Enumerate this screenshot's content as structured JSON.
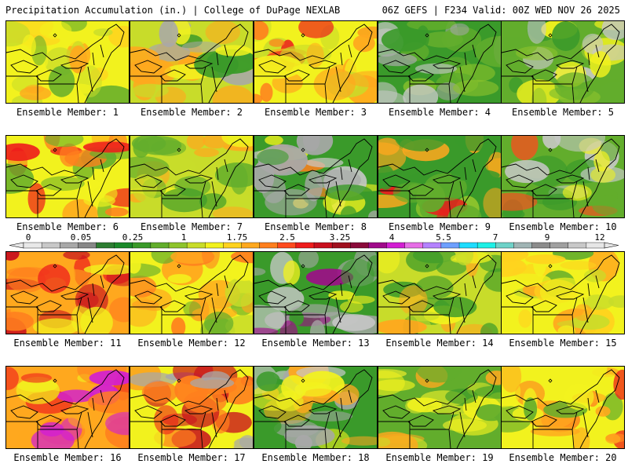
{
  "header": {
    "left": "Precipitation Accumulation (in.) | College of DuPage NEXLAB",
    "right": "06Z GEFS | F234 Valid: 00Z WED NOV 26 2025"
  },
  "panels": [
    {
      "label": "Ensemble Member: 1"
    },
    {
      "label": "Ensemble Member: 2"
    },
    {
      "label": "Ensemble Member: 3"
    },
    {
      "label": "Ensemble Member: 4"
    },
    {
      "label": "Ensemble Member: 5"
    },
    {
      "label": "Ensemble Member: 6"
    },
    {
      "label": "Ensemble Member: 7"
    },
    {
      "label": "Ensemble Member: 8"
    },
    {
      "label": "Ensemble Member: 9"
    },
    {
      "label": "Ensemble Member: 10"
    },
    {
      "label": "Ensemble Member: 11"
    },
    {
      "label": "Ensemble Member: 12"
    },
    {
      "label": "Ensemble Member: 13"
    },
    {
      "label": "Ensemble Member: 14"
    },
    {
      "label": "Ensemble Member: 15"
    },
    {
      "label": "Ensemble Member: 16"
    },
    {
      "label": "Ensemble Member: 17"
    },
    {
      "label": "Ensemble Member: 18"
    },
    {
      "label": "Ensemble Member: 19"
    },
    {
      "label": "Ensemble Member: 20"
    }
  ],
  "legend": {
    "tick_labels": [
      "0",
      "0.05",
      "0.25",
      "1",
      "1.75",
      "2.5",
      "3.25",
      "4",
      "5.5",
      "7",
      "9",
      "12"
    ],
    "colors": [
      "#e8e8e8",
      "#c8c8c8",
      "#a8a8a8",
      "#888888",
      "#2e7d32",
      "#1b8a2a",
      "#3a9a2a",
      "#62ad2c",
      "#8ec42c",
      "#c8dc2a",
      "#f2f21e",
      "#ffd21e",
      "#ffa81e",
      "#ff7f1e",
      "#ff4a1e",
      "#ee1c1c",
      "#c8101e",
      "#a0101e",
      "#8a0a3a",
      "#a00a8a",
      "#d21ed2",
      "#e66ee6",
      "#b482ff",
      "#6ea0ff",
      "#1edcff",
      "#1ef0e6",
      "#6ed2c8",
      "#a0b4b4",
      "#8c8c8c",
      "#a0a0a0",
      "#c8c8c8",
      "#e6e6e6"
    ]
  }
}
